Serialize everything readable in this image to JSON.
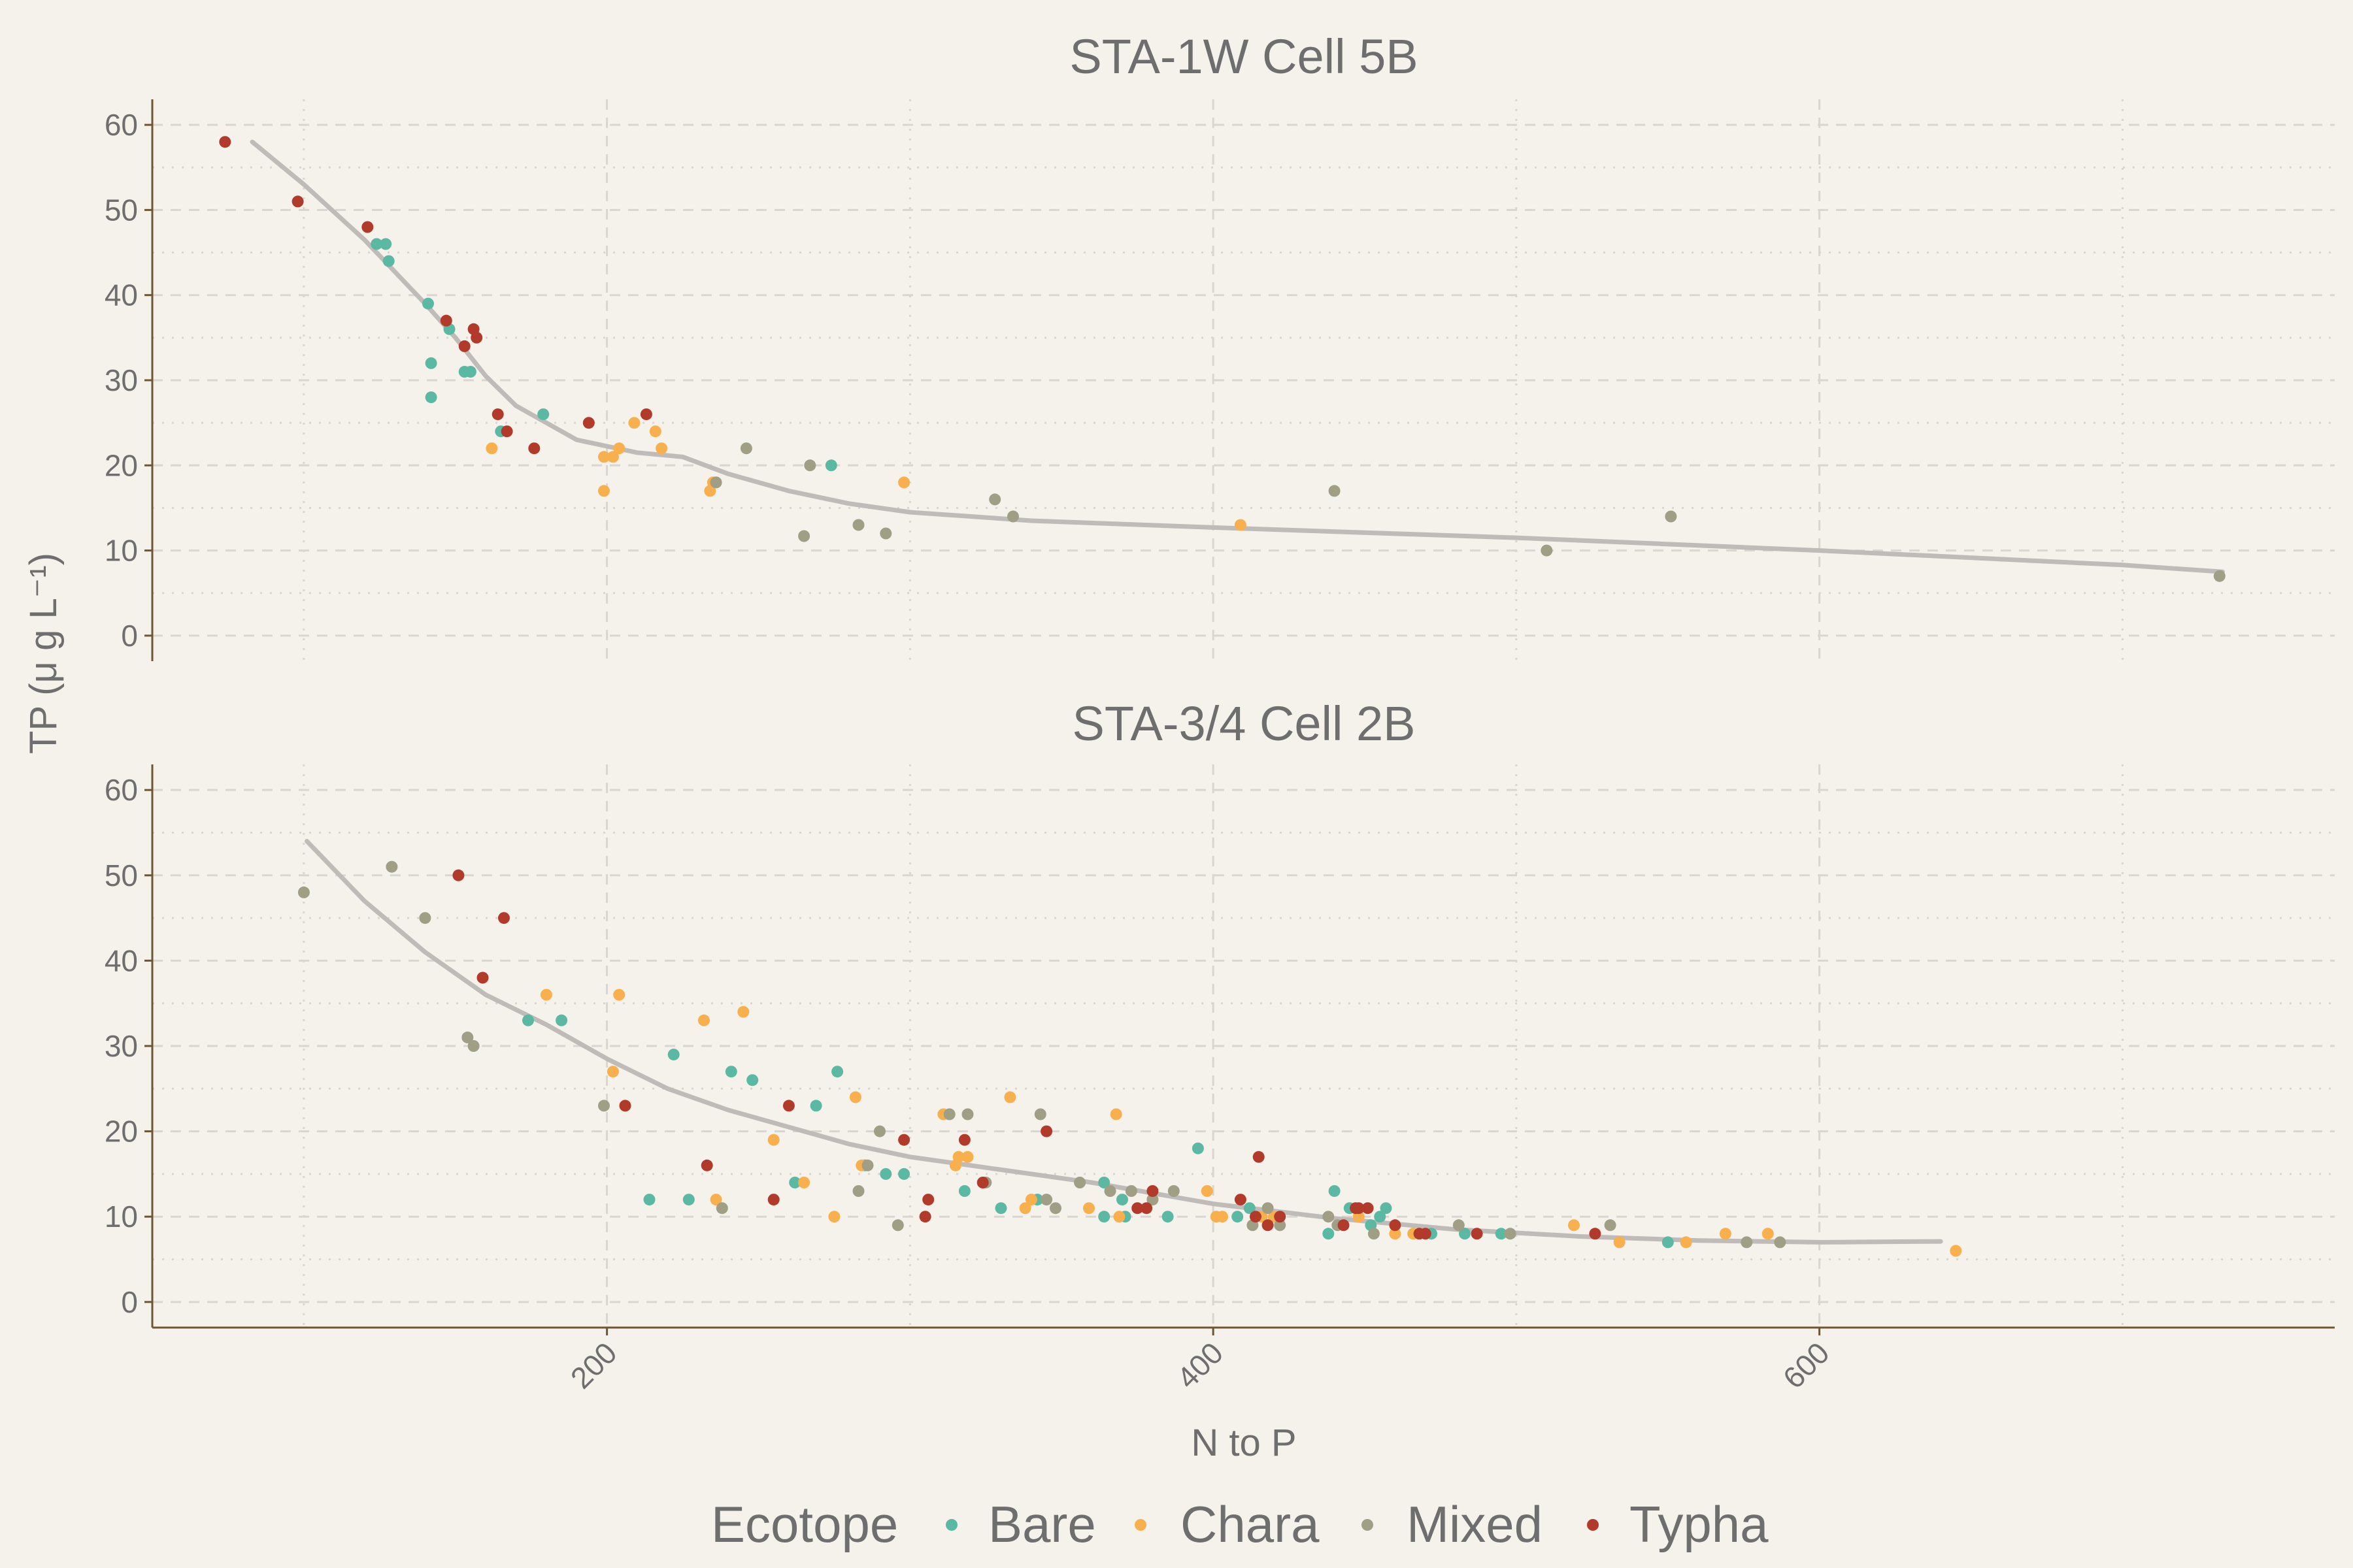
{
  "chart_data": {
    "type": "scatter",
    "xlabel": "N to P",
    "ylabel": "TP (μ g L⁻¹)",
    "xlim": [
      50,
      770
    ],
    "ylim": [
      -3,
      63
    ],
    "xticks": [
      200,
      400,
      600
    ],
    "yticks": [
      0,
      10,
      20,
      30,
      40,
      50,
      60
    ],
    "grid": true,
    "legend": {
      "title": "Ecotope",
      "placement": "bottom",
      "entries": [
        {
          "name": "Bare",
          "color": "#5BB9A3"
        },
        {
          "name": "Chara",
          "color": "#F8B04F"
        },
        {
          "name": "Mixed",
          "color": "#A09E85"
        },
        {
          "name": "Typha",
          "color": "#B23A2B"
        }
      ]
    },
    "colors": {
      "background": "#F5F1EB",
      "axis": "#6E5632",
      "grid": "#D9D5D0",
      "smooth": "#BEBBB8",
      "text": "#6E6E6E"
    },
    "panels": [
      {
        "title": "STA-1W Cell 5B",
        "smooth": [
          [
            83,
            58
          ],
          [
            100,
            53
          ],
          [
            120,
            46.5
          ],
          [
            140,
            39
          ],
          [
            150,
            35
          ],
          [
            160,
            30.5
          ],
          [
            170,
            27
          ],
          [
            190,
            23
          ],
          [
            210,
            21.5
          ],
          [
            225,
            21
          ],
          [
            240,
            19
          ],
          [
            260,
            17
          ],
          [
            280,
            15.5
          ],
          [
            300,
            14.5
          ],
          [
            340,
            13.5
          ],
          [
            400,
            12.7
          ],
          [
            500,
            11.5
          ],
          [
            600,
            10
          ],
          [
            700,
            8.3
          ],
          [
            733,
            7.5
          ]
        ],
        "series": [
          {
            "name": "Bare",
            "points": [
              [
                124,
                46
              ],
              [
                127,
                46
              ],
              [
                128,
                44
              ],
              [
                141,
                39
              ],
              [
                148,
                36
              ],
              [
                153,
                31
              ],
              [
                142,
                32
              ],
              [
                142,
                28
              ],
              [
                155,
                31
              ],
              [
                165,
                24
              ],
              [
                179,
                26
              ],
              [
                274,
                20
              ]
            ]
          },
          {
            "name": "Chara",
            "points": [
              [
                162,
                22
              ],
              [
                199,
                21
              ],
              [
                199,
                17
              ],
              [
                202,
                21
              ],
              [
                209,
                25
              ],
              [
                204,
                22
              ],
              [
                216,
                24
              ],
              [
                218,
                22
              ],
              [
                234,
                17
              ],
              [
                235,
                18
              ],
              [
                298,
                18
              ],
              [
                409,
                13
              ]
            ]
          },
          {
            "name": "Mixed",
            "points": [
              [
                236,
                18
              ],
              [
                246,
                22
              ],
              [
                267,
                20
              ],
              [
                265,
                11.7
              ],
              [
                283,
                13
              ],
              [
                292,
                12
              ],
              [
                328,
                16
              ],
              [
                334,
                14
              ],
              [
                440,
                17
              ],
              [
                510,
                10
              ],
              [
                551,
                14
              ],
              [
                732,
                7
              ]
            ]
          },
          {
            "name": "Typha",
            "points": [
              [
                74,
                58
              ],
              [
                98,
                51
              ],
              [
                121,
                48
              ],
              [
                147,
                37
              ],
              [
                153,
                34
              ],
              [
                156,
                36
              ],
              [
                157,
                35
              ],
              [
                164,
                26
              ],
              [
                167,
                24
              ],
              [
                176,
                22
              ],
              [
                194,
                25
              ],
              [
                213,
                26
              ]
            ]
          }
        ]
      },
      {
        "title": "STA-3/4 Cell 2B",
        "smooth": [
          [
            101,
            54
          ],
          [
            120,
            47
          ],
          [
            140,
            41
          ],
          [
            160,
            36
          ],
          [
            180,
            32.5
          ],
          [
            200,
            28.5
          ],
          [
            220,
            25
          ],
          [
            240,
            22.5
          ],
          [
            260,
            20.5
          ],
          [
            280,
            18.5
          ],
          [
            300,
            17
          ],
          [
            330,
            15.5
          ],
          [
            360,
            14
          ],
          [
            400,
            11.5
          ],
          [
            440,
            9.8
          ],
          [
            480,
            8.5
          ],
          [
            520,
            7.7
          ],
          [
            560,
            7.2
          ],
          [
            600,
            7
          ],
          [
            640,
            7.1
          ]
        ],
        "series": [
          {
            "name": "Bare",
            "points": [
              [
                174,
                33
              ],
              [
                185,
                33
              ],
              [
                214,
                12
              ],
              [
                222,
                29
              ],
              [
                227,
                12
              ],
              [
                241,
                27
              ],
              [
                248,
                26
              ],
              [
                262,
                14
              ],
              [
                269,
                23
              ],
              [
                276,
                27
              ],
              [
                285,
                16
              ],
              [
                292,
                15
              ],
              [
                298,
                15
              ],
              [
                318,
                13
              ],
              [
                330,
                11
              ],
              [
                342,
                12
              ],
              [
                364,
                14
              ],
              [
                370,
                12
              ],
              [
                371,
                10
              ],
              [
                364,
                10
              ],
              [
                385,
                10
              ],
              [
                395,
                18
              ],
              [
                408,
                10
              ],
              [
                412,
                11
              ],
              [
                438,
                8
              ],
              [
                440,
                13
              ],
              [
                445,
                11
              ],
              [
                452,
                9
              ],
              [
                455,
                10
              ],
              [
                457,
                11
              ],
              [
                472,
                8
              ],
              [
                483,
                8
              ],
              [
                495,
                8
              ],
              [
                550,
                7
              ]
            ]
          },
          {
            "name": "Chara",
            "points": [
              [
                180,
                36
              ],
              [
                202,
                27
              ],
              [
                204,
                36
              ],
              [
                232,
                33
              ],
              [
                236,
                12
              ],
              [
                245,
                34
              ],
              [
                255,
                19
              ],
              [
                265,
                14
              ],
              [
                275,
                10
              ],
              [
                282,
                24
              ],
              [
                284,
                16
              ],
              [
                311,
                22
              ],
              [
                315,
                16
              ],
              [
                316,
                17
              ],
              [
                319,
                17
              ],
              [
                333,
                24
              ],
              [
                338,
                11
              ],
              [
                340,
                12
              ],
              [
                359,
                11
              ],
              [
                368,
                22
              ],
              [
                369,
                10
              ],
              [
                380,
                12
              ],
              [
                398,
                13
              ],
              [
                401,
                10
              ],
              [
                403,
                10
              ],
              [
                416,
                10
              ],
              [
                420,
                10
              ],
              [
                448,
                10
              ],
              [
                460,
                8
              ],
              [
                466,
                8
              ],
              [
                519,
                9
              ],
              [
                534,
                7
              ],
              [
                556,
                7
              ],
              [
                569,
                8
              ],
              [
                583,
                8
              ],
              [
                645,
                6
              ]
            ]
          },
          {
            "name": "Mixed",
            "points": [
              [
                100,
                48
              ],
              [
                129,
                51
              ],
              [
                140,
                45
              ],
              [
                154,
                31
              ],
              [
                156,
                30
              ],
              [
                199,
                23
              ],
              [
                238,
                11
              ],
              [
                283,
                13
              ],
              [
                286,
                16
              ],
              [
                290,
                20
              ],
              [
                296,
                9
              ],
              [
                313,
                22
              ],
              [
                319,
                22
              ],
              [
                325,
                14
              ],
              [
                343,
                22
              ],
              [
                345,
                12
              ],
              [
                348,
                11
              ],
              [
                356,
                14
              ],
              [
                366,
                13
              ],
              [
                373,
                13
              ],
              [
                380,
                12
              ],
              [
                387,
                13
              ],
              [
                413,
                9
              ],
              [
                418,
                11
              ],
              [
                422,
                9
              ],
              [
                438,
                10
              ],
              [
                441,
                9
              ],
              [
                453,
                8
              ],
              [
                481,
                9
              ],
              [
                498,
                8
              ],
              [
                531,
                9
              ],
              [
                576,
                7
              ],
              [
                587,
                7
              ]
            ]
          },
          {
            "name": "Typha",
            "points": [
              [
                151,
                50
              ],
              [
                159,
                38
              ],
              [
                166,
                45
              ],
              [
                206,
                23
              ],
              [
                233,
                16
              ],
              [
                255,
                12
              ],
              [
                260,
                23
              ],
              [
                298,
                19
              ],
              [
                305,
                10
              ],
              [
                306,
                12
              ],
              [
                318,
                19
              ],
              [
                324,
                14
              ],
              [
                345,
                20
              ],
              [
                375,
                11
              ],
              [
                378,
                11
              ],
              [
                380,
                13
              ],
              [
                409,
                12
              ],
              [
                414,
                10
              ],
              [
                415,
                17
              ],
              [
                418,
                9
              ],
              [
                422,
                10
              ],
              [
                443,
                9
              ],
              [
                447,
                11
              ],
              [
                448,
                11
              ],
              [
                451,
                11
              ],
              [
                460,
                9
              ],
              [
                468,
                8
              ],
              [
                470,
                8
              ],
              [
                487,
                8
              ],
              [
                526,
                8
              ]
            ]
          }
        ]
      }
    ]
  }
}
